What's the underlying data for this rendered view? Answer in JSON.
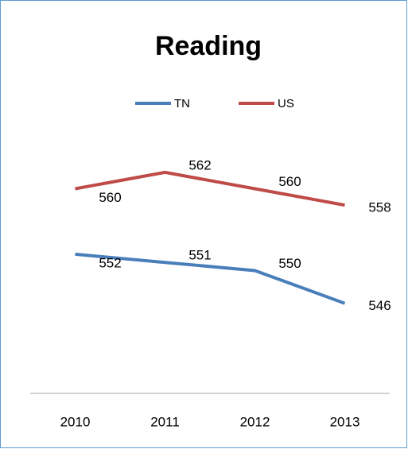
{
  "chart_data": {
    "type": "line",
    "title": "Reading",
    "categories": [
      "2010",
      "2011",
      "2012",
      "2013"
    ],
    "series": [
      {
        "name": "TN",
        "color": "#4a7ebb",
        "values": [
          552,
          551,
          550,
          546
        ]
      },
      {
        "name": "US",
        "color": "#be4b48",
        "values": [
          560,
          562,
          560,
          558
        ]
      }
    ],
    "ylim": [
      535,
      565
    ],
    "legend": "top"
  }
}
